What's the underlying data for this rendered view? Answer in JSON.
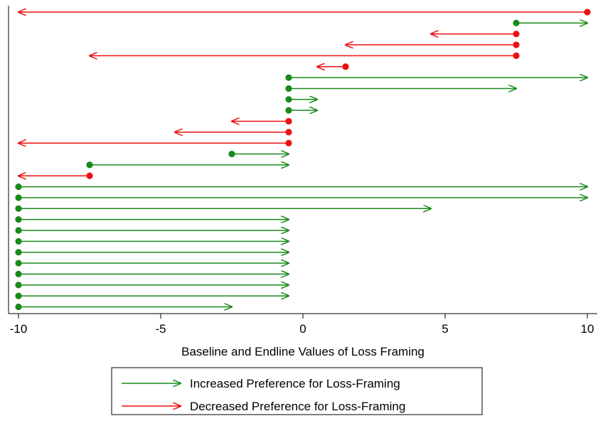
{
  "chart_data": {
    "type": "arrow-plot",
    "title": "",
    "xlabel": "Baseline and Endline Values of Loss Framing",
    "ylabel": "",
    "xlim": [
      -10,
      10
    ],
    "xticks": [
      -10,
      -5,
      0,
      5,
      10
    ],
    "grid": false,
    "legend_position": "bottom",
    "colors": {
      "increased": "#1a8a1a",
      "decreased": "#ee1111"
    },
    "series": [
      {
        "name": "Increased Preference for Loss-Framing",
        "key": "increased",
        "arrows": [
          {
            "baseline": 7.5,
            "endline": 10
          },
          {
            "baseline": -0.5,
            "endline": 10
          },
          {
            "baseline": -0.5,
            "endline": 7.5
          },
          {
            "baseline": -0.5,
            "endline": 0.5
          },
          {
            "baseline": -0.5,
            "endline": 0.5
          },
          {
            "baseline": -2.5,
            "endline": -0.5
          },
          {
            "baseline": -7.5,
            "endline": -0.5
          },
          {
            "baseline": -10,
            "endline": 10
          },
          {
            "baseline": -10,
            "endline": 10
          },
          {
            "baseline": -10,
            "endline": 4.5
          },
          {
            "baseline": -10,
            "endline": -0.5
          },
          {
            "baseline": -10,
            "endline": -0.5
          },
          {
            "baseline": -10,
            "endline": -0.5
          },
          {
            "baseline": -10,
            "endline": -0.5
          },
          {
            "baseline": -10,
            "endline": -0.5
          },
          {
            "baseline": -10,
            "endline": -0.5
          },
          {
            "baseline": -10,
            "endline": -0.5
          },
          {
            "baseline": -10,
            "endline": -0.5
          },
          {
            "baseline": -10,
            "endline": -2.5
          }
        ]
      },
      {
        "name": "Decreased Preference for Loss-Framing",
        "key": "decreased",
        "arrows": [
          {
            "baseline": 10,
            "endline": -10
          },
          {
            "baseline": 7.5,
            "endline": 4.5
          },
          {
            "baseline": 7.5,
            "endline": 1.5
          },
          {
            "baseline": 7.5,
            "endline": -7.5
          },
          {
            "baseline": 1.5,
            "endline": 0.5
          },
          {
            "baseline": -0.5,
            "endline": -2.5
          },
          {
            "baseline": -0.5,
            "endline": -4.5
          },
          {
            "baseline": -0.5,
            "endline": -10
          },
          {
            "baseline": -7.5,
            "endline": -10
          }
        ]
      }
    ],
    "row_order": [
      {
        "series": "decreased",
        "index": 0
      },
      {
        "series": "increased",
        "index": 0
      },
      {
        "series": "decreased",
        "index": 1
      },
      {
        "series": "decreased",
        "index": 2
      },
      {
        "series": "decreased",
        "index": 3
      },
      {
        "series": "decreased",
        "index": 4
      },
      {
        "series": "increased",
        "index": 1
      },
      {
        "series": "increased",
        "index": 2
      },
      {
        "series": "increased",
        "index": 3
      },
      {
        "series": "increased",
        "index": 4
      },
      {
        "series": "decreased",
        "index": 5
      },
      {
        "series": "decreased",
        "index": 6
      },
      {
        "series": "decreased",
        "index": 7
      },
      {
        "series": "increased",
        "index": 5
      },
      {
        "series": "increased",
        "index": 6
      },
      {
        "series": "decreased",
        "index": 8
      },
      {
        "series": "increased",
        "index": 7
      },
      {
        "series": "increased",
        "index": 8
      },
      {
        "series": "increased",
        "index": 9
      },
      {
        "series": "increased",
        "index": 10
      },
      {
        "series": "increased",
        "index": 11
      },
      {
        "series": "increased",
        "index": 12
      },
      {
        "series": "increased",
        "index": 13
      },
      {
        "series": "increased",
        "index": 14
      },
      {
        "series": "increased",
        "index": 15
      },
      {
        "series": "increased",
        "index": 16
      },
      {
        "series": "increased",
        "index": 17
      },
      {
        "series": "increased",
        "index": 18
      }
    ]
  }
}
